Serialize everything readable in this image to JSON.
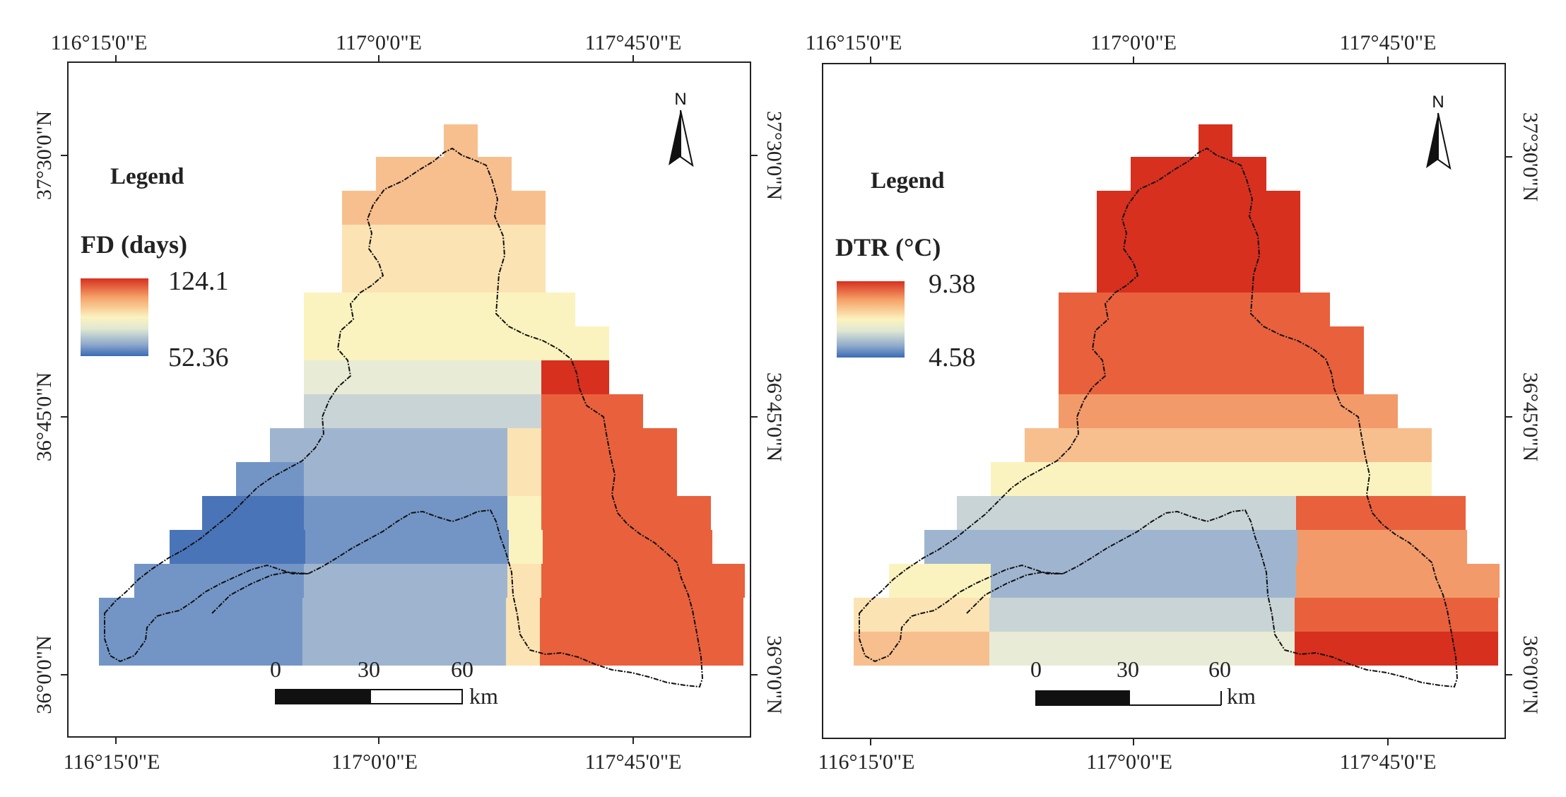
{
  "maps": [
    {
      "id": "fd",
      "legend_title": "Legend",
      "variable_label": "FD (days)",
      "legend_max": "124.1",
      "legend_min": "52.36",
      "colorramp": [
        "#d7301f",
        "#f6a46a",
        "#fbf3bf",
        "#dfe8d3",
        "#8da8cc",
        "#3a6bb5"
      ],
      "lon_labels": [
        "116°15'0\"E",
        "117°0'0\"E",
        "117°45'0\"E"
      ],
      "lat_labels": [
        "37°30'0\"N",
        "36°45'0\"N",
        "36°0'0\"N"
      ],
      "north_label": "N",
      "scale_ticks": [
        "0",
        "30",
        "60"
      ],
      "scale_unit": "km"
    },
    {
      "id": "dtr",
      "legend_title": "Legend",
      "variable_label": "DTR (°C)",
      "legend_max": "9.38",
      "legend_min": "4.58",
      "colorramp": [
        "#d7301f",
        "#f6a46a",
        "#fbf3bf",
        "#dfe8d3",
        "#8da8cc",
        "#3a6bb5"
      ],
      "lon_labels": [
        "116°15'0\"E",
        "117°0'0\"E",
        "117°45'0\"E"
      ],
      "lat_labels": [
        "37°30'0\"N",
        "36°45'0\"N",
        "36°0'0\"N"
      ],
      "north_label": "N",
      "scale_ticks": [
        "0",
        "30",
        "60"
      ],
      "scale_unit": "km"
    }
  ]
}
